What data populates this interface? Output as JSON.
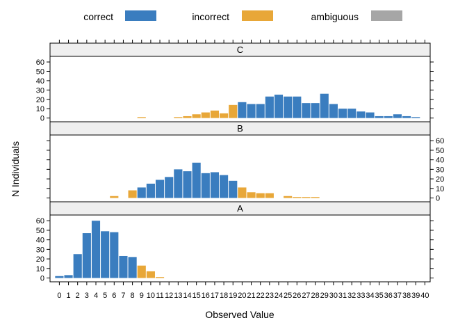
{
  "chart_data": {
    "type": "bar",
    "xlabel": "Observed Value",
    "ylabel": "N Individuals",
    "x_range": [
      0,
      40
    ],
    "ylim": [
      -4,
      66
    ],
    "y_ticks": [
      0,
      10,
      20,
      30,
      40,
      50,
      60
    ],
    "categories_legend": [
      {
        "name": "correct",
        "color": "#3a7dbf"
      },
      {
        "name": "incorrect",
        "color": "#e8a738"
      },
      {
        "name": "ambiguous",
        "color": "#a6a6a6"
      }
    ],
    "panels": [
      {
        "label": "C",
        "bars": [
          {
            "x": 9,
            "y": 1,
            "cat": "incorrect"
          },
          {
            "x": 13,
            "y": 1,
            "cat": "incorrect"
          },
          {
            "x": 14,
            "y": 2,
            "cat": "incorrect"
          },
          {
            "x": 15,
            "y": 4,
            "cat": "incorrect"
          },
          {
            "x": 16,
            "y": 6,
            "cat": "incorrect"
          },
          {
            "x": 17,
            "y": 8,
            "cat": "incorrect"
          },
          {
            "x": 18,
            "y": 5,
            "cat": "incorrect"
          },
          {
            "x": 19,
            "y": 14,
            "cat": "incorrect"
          },
          {
            "x": 20,
            "y": 17,
            "cat": "correct"
          },
          {
            "x": 21,
            "y": 15,
            "cat": "correct"
          },
          {
            "x": 22,
            "y": 15,
            "cat": "correct"
          },
          {
            "x": 23,
            "y": 23,
            "cat": "correct"
          },
          {
            "x": 24,
            "y": 25,
            "cat": "correct"
          },
          {
            "x": 25,
            "y": 23,
            "cat": "correct"
          },
          {
            "x": 26,
            "y": 23,
            "cat": "correct"
          },
          {
            "x": 27,
            "y": 16,
            "cat": "correct"
          },
          {
            "x": 28,
            "y": 16,
            "cat": "correct"
          },
          {
            "x": 29,
            "y": 26,
            "cat": "correct"
          },
          {
            "x": 30,
            "y": 15,
            "cat": "correct"
          },
          {
            "x": 31,
            "y": 10,
            "cat": "correct"
          },
          {
            "x": 32,
            "y": 10,
            "cat": "correct"
          },
          {
            "x": 33,
            "y": 7,
            "cat": "correct"
          },
          {
            "x": 34,
            "y": 6,
            "cat": "correct"
          },
          {
            "x": 35,
            "y": 2,
            "cat": "correct"
          },
          {
            "x": 36,
            "y": 2,
            "cat": "correct"
          },
          {
            "x": 37,
            "y": 4,
            "cat": "correct"
          },
          {
            "x": 38,
            "y": 2,
            "cat": "correct"
          },
          {
            "x": 39,
            "y": 1,
            "cat": "correct"
          }
        ]
      },
      {
        "label": "B",
        "bars": [
          {
            "x": 6,
            "y": 2,
            "cat": "incorrect"
          },
          {
            "x": 8,
            "y": 8,
            "cat": "incorrect"
          },
          {
            "x": 9,
            "y": 11,
            "cat": "correct"
          },
          {
            "x": 10,
            "y": 15,
            "cat": "correct"
          },
          {
            "x": 11,
            "y": 19,
            "cat": "correct"
          },
          {
            "x": 12,
            "y": 22,
            "cat": "correct"
          },
          {
            "x": 13,
            "y": 30,
            "cat": "correct"
          },
          {
            "x": 14,
            "y": 28,
            "cat": "correct"
          },
          {
            "x": 15,
            "y": 37,
            "cat": "correct"
          },
          {
            "x": 16,
            "y": 26,
            "cat": "correct"
          },
          {
            "x": 17,
            "y": 27,
            "cat": "correct"
          },
          {
            "x": 18,
            "y": 24,
            "cat": "correct"
          },
          {
            "x": 19,
            "y": 18,
            "cat": "correct"
          },
          {
            "x": 20,
            "y": 11,
            "cat": "incorrect"
          },
          {
            "x": 21,
            "y": 6,
            "cat": "incorrect"
          },
          {
            "x": 22,
            "y": 5,
            "cat": "incorrect"
          },
          {
            "x": 23,
            "y": 5,
            "cat": "incorrect"
          },
          {
            "x": 25,
            "y": 2,
            "cat": "incorrect"
          },
          {
            "x": 26,
            "y": 1,
            "cat": "incorrect"
          },
          {
            "x": 27,
            "y": 1,
            "cat": "incorrect"
          },
          {
            "x": 28,
            "y": 1,
            "cat": "incorrect"
          }
        ]
      },
      {
        "label": "A",
        "bars": [
          {
            "x": 0,
            "y": 2,
            "cat": "correct"
          },
          {
            "x": 1,
            "y": 3,
            "cat": "correct"
          },
          {
            "x": 2,
            "y": 25,
            "cat": "correct"
          },
          {
            "x": 3,
            "y": 47,
            "cat": "correct"
          },
          {
            "x": 4,
            "y": 60,
            "cat": "correct"
          },
          {
            "x": 5,
            "y": 49,
            "cat": "correct"
          },
          {
            "x": 6,
            "y": 48,
            "cat": "correct"
          },
          {
            "x": 7,
            "y": 23,
            "cat": "correct"
          },
          {
            "x": 8,
            "y": 22,
            "cat": "correct"
          },
          {
            "x": 9,
            "y": 13,
            "cat": "incorrect"
          },
          {
            "x": 10,
            "y": 7,
            "cat": "incorrect"
          },
          {
            "x": 11,
            "y": 1,
            "cat": "incorrect"
          }
        ]
      }
    ]
  }
}
